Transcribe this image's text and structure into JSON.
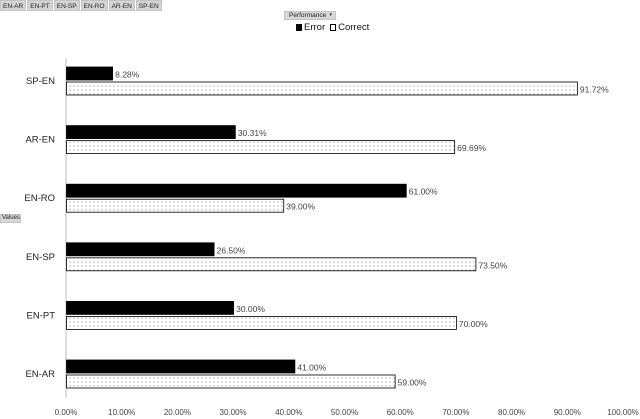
{
  "filters": [
    "EN-AR",
    "EN-PT",
    "EN-SP",
    "EN-RO",
    "AR-EN",
    "SP-EN"
  ],
  "performance_button": "Performance",
  "values_button": "Values",
  "legend": {
    "error_label": "Error",
    "correct_label": "Correct"
  },
  "chart_data": {
    "type": "bar",
    "orientation": "horizontal",
    "categories": [
      "SP-EN",
      "AR-EN",
      "EN-RO",
      "EN-SP",
      "EN-PT",
      "EN-AR"
    ],
    "series": [
      {
        "name": "Error",
        "values": [
          8.28,
          30.31,
          61.0,
          26.5,
          30.0,
          41.0
        ],
        "color": "#000000"
      },
      {
        "name": "Correct",
        "values": [
          91.72,
          69.69,
          39.0,
          73.5,
          70.0,
          59.0
        ],
        "color": "#ffffff",
        "pattern": "dotted"
      }
    ],
    "data_labels": [
      [
        "8.28%",
        "30.31%",
        "61.00%",
        "26.50%",
        "30.00%",
        "41.00%"
      ],
      [
        "91.72%",
        "69.69%",
        "39.00%",
        "73.50%",
        "70.00%",
        "59.00%"
      ]
    ],
    "x_ticks": [
      "0.00%",
      "10.00%",
      "20.00%",
      "30.00%",
      "40.00%",
      "50.00%",
      "60.00%",
      "70.00%",
      "80.00%",
      "90.00%",
      "100.00%"
    ],
    "xlim": [
      0,
      100
    ],
    "grid": false,
    "legend_position": "top-center"
  }
}
